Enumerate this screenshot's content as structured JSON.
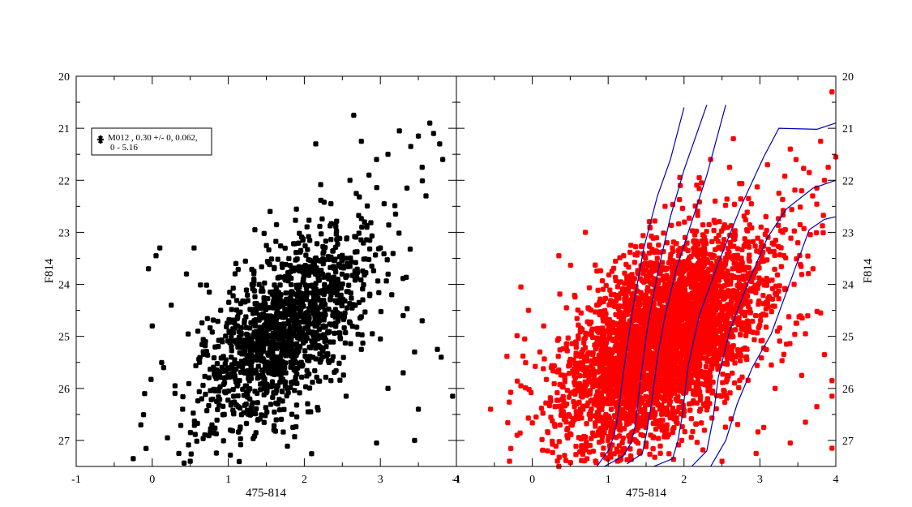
{
  "figure": {
    "colors": {
      "left_points": "#000000",
      "right_points": "#ff0000",
      "isochrones": "#0000b4",
      "frame": "#000000"
    }
  },
  "chart_data": [
    {
      "type": "scatter",
      "title": "",
      "xlabel": "475-814",
      "ylabel": "F814",
      "xlim": [
        -1,
        4
      ],
      "ylim": [
        27.5,
        20
      ],
      "y_inverted": true,
      "xticks": [
        "-1",
        "0",
        "1",
        "2",
        "3",
        "4"
      ],
      "yticks": [
        "20",
        "21",
        "22",
        "23",
        "24",
        "25",
        "26",
        "27"
      ],
      "legend": {
        "placement": "top-left",
        "line1": "M012  , 0.30 +/- 0, 0.062,",
        "line2": "0 - 5.16",
        "marker": "star",
        "color": "#000000"
      },
      "series": [
        {
          "name": "M012  , 0.30 +/- 0, 0.062,",
          "marker": "star",
          "color": "#000000",
          "points": [
            [
              -0.25,
              27.35
            ],
            [
              -0.15,
              26.7
            ],
            [
              -0.1,
              26.1
            ],
            [
              -0.05,
              23.7
            ],
            [
              0.0,
              24.8
            ],
            [
              0.05,
              23.45
            ],
            [
              0.1,
              23.3
            ],
            [
              0.15,
              25.6
            ],
            [
              0.2,
              26.95
            ],
            [
              0.25,
              24.4
            ],
            [
              0.3,
              25.95
            ],
            [
              0.35,
              27.25
            ],
            [
              0.4,
              26.4
            ],
            [
              0.45,
              23.8
            ],
            [
              0.5,
              27.4
            ],
            [
              0.55,
              23.3
            ],
            [
              0.6,
              24.9
            ],
            [
              0.65,
              26.2
            ],
            [
              0.7,
              25.1
            ],
            [
              0.75,
              24.15
            ],
            [
              2.65,
              20.75
            ],
            [
              3.1,
              21.5
            ],
            [
              3.25,
              21.05
            ],
            [
              3.4,
              21.35
            ],
            [
              3.5,
              21.15
            ],
            [
              3.65,
              20.9
            ],
            [
              3.7,
              21.1
            ],
            [
              3.78,
              21.3
            ],
            [
              3.82,
              21.6
            ],
            [
              3.55,
              21.75
            ],
            [
              3.6,
              22.3
            ],
            [
              3.35,
              22.15
            ],
            [
              3.2,
              22.65
            ],
            [
              3.05,
              22.45
            ],
            [
              2.95,
              21.6
            ],
            [
              2.85,
              21.9
            ],
            [
              2.75,
              21.25
            ],
            [
              3.0,
              23.3
            ],
            [
              3.15,
              24.2
            ],
            [
              3.3,
              24.6
            ],
            [
              3.55,
              24.7
            ],
            [
              3.75,
              25.25
            ],
            [
              3.8,
              25.4
            ],
            [
              3.95,
              26.15
            ],
            [
              3.45,
              25.3
            ],
            [
              3.5,
              26.4
            ],
            [
              3.3,
              25.7
            ],
            [
              3.45,
              27.0
            ],
            [
              3.1,
              26.0
            ],
            [
              2.95,
              27.05
            ],
            [
              3.0,
              25.05
            ],
            [
              1.75,
              23.85
            ],
            [
              1.95,
              24.55
            ],
            [
              2.3,
              24.1
            ],
            [
              2.55,
              23.5
            ],
            [
              2.35,
              22.45
            ],
            [
              2.6,
              22.0
            ],
            [
              2.15,
              21.3
            ],
            [
              1.55,
              22.6
            ],
            [
              1.35,
              22.95
            ],
            [
              1.1,
              23.6
            ],
            [
              0.9,
              24.5
            ],
            [
              1.25,
              25.2
            ],
            [
              1.45,
              25.75
            ],
            [
              1.65,
              26.3
            ],
            [
              1.85,
              26.75
            ],
            [
              2.05,
              26.45
            ],
            [
              2.35,
              25.85
            ],
            [
              2.55,
              26.15
            ],
            [
              2.75,
              25.25
            ]
          ],
          "cluster": {
            "count": 1350,
            "center": [
              1.75,
              24.85
            ],
            "spread": [
              0.45,
              0.95
            ],
            "tilt": -0.35,
            "ylim": [
              22.0,
              27.45
            ]
          }
        }
      ]
    },
    {
      "type": "scatter",
      "title": "",
      "xlabel": "475-814",
      "ylabel": "F814",
      "xlim": [
        -1,
        4
      ],
      "ylim": [
        27.5,
        20
      ],
      "y_inverted": true,
      "xticks": [
        "-1",
        "0",
        "1",
        "2",
        "3",
        "4"
      ],
      "yticks": [
        "20",
        "21",
        "22",
        "23",
        "24",
        "25",
        "26",
        "27"
      ],
      "series": [
        {
          "name": "",
          "marker": "star",
          "color": "#ff0000",
          "points": [
            [
              -0.55,
              26.4
            ],
            [
              -0.3,
              27.4
            ],
            [
              -0.2,
              26.9
            ],
            [
              -0.15,
              25.95
            ],
            [
              -0.1,
              25.05
            ],
            [
              -0.05,
              24.5
            ],
            [
              -0.15,
              24.05
            ],
            [
              0.05,
              26.55
            ],
            [
              0.1,
              25.3
            ],
            [
              0.2,
              27.2
            ],
            [
              0.35,
              23.45
            ],
            [
              0.35,
              27.5
            ],
            [
              0.7,
              23.0
            ],
            [
              0.45,
              24.45
            ],
            [
              0.55,
              25.7
            ],
            [
              3.95,
              20.3
            ],
            [
              4.0,
              21.55
            ],
            [
              3.9,
              21.75
            ],
            [
              3.85,
              22.0
            ],
            [
              3.8,
              21.25
            ],
            [
              3.75,
              22.15
            ],
            [
              3.65,
              21.85
            ],
            [
              3.55,
              22.2
            ],
            [
              3.4,
              21.4
            ],
            [
              3.1,
              21.7
            ],
            [
              3.25,
              22.25
            ],
            [
              3.95,
              25.85
            ],
            [
              3.95,
              26.15
            ],
            [
              3.95,
              27.15
            ],
            [
              3.85,
              25.35
            ],
            [
              3.8,
              24.55
            ],
            [
              3.75,
              26.35
            ],
            [
              3.6,
              26.65
            ],
            [
              3.55,
              25.75
            ],
            [
              3.4,
              27.05
            ],
            [
              3.35,
              25.15
            ],
            [
              3.2,
              26.0
            ],
            [
              3.1,
              24.35
            ],
            [
              3.05,
              26.75
            ],
            [
              2.5,
              27.4
            ],
            [
              2.95,
              27.25
            ],
            [
              3.7,
              23.7
            ],
            [
              3.5,
              23.2
            ],
            [
              3.3,
              23.0
            ],
            [
              3.05,
              23.55
            ],
            [
              3.15,
              25.55
            ],
            [
              3.6,
              24.95
            ],
            [
              3.45,
              24.0
            ],
            [
              2.6,
              21.75
            ],
            [
              2.85,
              22.35
            ],
            [
              2.65,
              21.2
            ],
            [
              2.35,
              21.6
            ],
            [
              2.2,
              21.95
            ],
            [
              1.95,
              22.1
            ],
            [
              1.75,
              22.5
            ],
            [
              1.55,
              22.9
            ],
            [
              1.3,
              23.25
            ],
            [
              1.05,
              23.75
            ],
            [
              0.85,
              24.4
            ],
            [
              0.95,
              26.85
            ],
            [
              1.2,
              27.2
            ],
            [
              1.5,
              27.05
            ],
            [
              0.75,
              26.5
            ],
            [
              0.65,
              27.1
            ],
            [
              0.6,
              26.0
            ],
            [
              0.3,
              26.35
            ],
            [
              0.25,
              25.6
            ],
            [
              0.15,
              24.8
            ],
            [
              0.45,
              25.15
            ]
          ],
          "cluster": {
            "count": 3900,
            "center": [
              1.75,
              25.05
            ],
            "spread": [
              0.55,
              1.0
            ],
            "tilt": -0.35,
            "ylim": [
              21.6,
              27.45
            ]
          }
        }
      ],
      "isochrones": [
        {
          "name": "",
          "color": "#0000b4",
          "points": [
            [
              0.85,
              27.5
            ],
            [
              1.0,
              27.2
            ],
            [
              1.08,
              26.9
            ],
            [
              1.13,
              26.5
            ],
            [
              1.2,
              25.7
            ],
            [
              1.32,
              24.5
            ],
            [
              1.47,
              23.3
            ],
            [
              1.65,
              22.3
            ],
            [
              1.82,
              21.6
            ],
            [
              2.0,
              20.6
            ]
          ]
        },
        {
          "name": "",
          "color": "#0000b4",
          "points": [
            [
              0.95,
              27.5
            ],
            [
              1.2,
              27.3
            ],
            [
              1.3,
              27.05
            ],
            [
              1.36,
              26.7
            ],
            [
              1.42,
              25.9
            ],
            [
              1.52,
              24.8
            ],
            [
              1.65,
              23.8
            ],
            [
              1.82,
              22.7
            ],
            [
              2.0,
              21.8
            ],
            [
              2.3,
              20.55
            ]
          ]
        },
        {
          "name": "",
          "color": "#0000b4",
          "points": [
            [
              1.25,
              27.45
            ],
            [
              1.45,
              27.25
            ],
            [
              1.5,
              26.9
            ],
            [
              1.57,
              26.3
            ],
            [
              1.65,
              25.4
            ],
            [
              1.75,
              24.6
            ],
            [
              1.9,
              23.7
            ],
            [
              2.1,
              22.8
            ],
            [
              2.3,
              21.9
            ],
            [
              2.55,
              20.55
            ]
          ]
        },
        {
          "name": "",
          "color": "#0000b4",
          "points": [
            [
              1.6,
              27.5
            ],
            [
              1.85,
              27.35
            ],
            [
              1.92,
              27.0
            ],
            [
              1.98,
              26.5
            ],
            [
              2.05,
              25.6
            ],
            [
              2.2,
              24.6
            ],
            [
              2.45,
              23.6
            ],
            [
              2.75,
              22.5
            ],
            [
              3.05,
              21.55
            ],
            [
              3.25,
              21.0
            ],
            [
              3.75,
              21.02
            ],
            [
              4.0,
              20.9
            ]
          ]
        },
        {
          "name": "",
          "color": "#0000b4",
          "points": [
            [
              2.1,
              27.5
            ],
            [
              2.3,
              27.2
            ],
            [
              2.38,
              26.6
            ],
            [
              2.45,
              25.8
            ],
            [
              2.6,
              24.9
            ],
            [
              2.85,
              23.95
            ],
            [
              3.1,
              23.1
            ],
            [
              3.35,
              22.55
            ],
            [
              3.7,
              22.15
            ],
            [
              4.0,
              22.0
            ]
          ]
        },
        {
          "name": "",
          "color": "#0000b4",
          "points": [
            [
              2.35,
              27.5
            ],
            [
              2.55,
              27.0
            ],
            [
              2.7,
              26.3
            ],
            [
              2.9,
              25.6
            ],
            [
              3.15,
              24.95
            ],
            [
              3.4,
              23.95
            ],
            [
              3.65,
              22.95
            ],
            [
              3.85,
              22.75
            ],
            [
              4.0,
              22.7
            ]
          ]
        }
      ]
    }
  ]
}
